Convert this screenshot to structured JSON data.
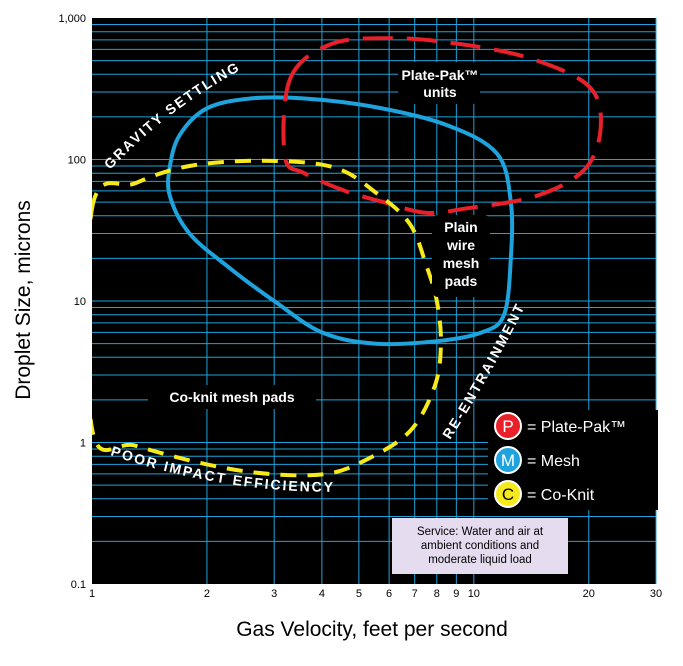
{
  "chart_data": {
    "type": "line",
    "x_scale": "log",
    "y_scale": "log",
    "xlim": [
      1,
      30
    ],
    "ylim": [
      0.1,
      1000
    ],
    "xlabel": "Gas Velocity, feet per second",
    "ylabel": "Droplet Size, microns",
    "x_ticks": [
      {
        "value": 1,
        "label": "1"
      },
      {
        "value": 2,
        "label": "2"
      },
      {
        "value": 3,
        "label": "3"
      },
      {
        "value": 4,
        "label": "4"
      },
      {
        "value": 5,
        "label": "5"
      },
      {
        "value": 6,
        "label": "6"
      },
      {
        "value": 7,
        "label": "7"
      },
      {
        "value": 8,
        "label": "8"
      },
      {
        "value": 9,
        "label": "9"
      },
      {
        "value": 10,
        "label": "10"
      },
      {
        "value": 20,
        "label": "20"
      },
      {
        "value": 30,
        "label": "30"
      }
    ],
    "y_ticks": [
      {
        "value": 0.1,
        "label": "0.1"
      },
      {
        "value": 1,
        "label": "1"
      },
      {
        "value": 10,
        "label": "10"
      },
      {
        "value": 100,
        "label": "100"
      },
      {
        "value": 1000,
        "label": "1,000"
      }
    ],
    "grid": true,
    "background": "#000000",
    "series": [
      {
        "name": "Plate-Pak™",
        "color": "#e8202a",
        "style": "dashed",
        "points": [
          [
            3.3,
            370
          ],
          [
            4.2,
            650
          ],
          [
            6,
            720
          ],
          [
            9,
            660
          ],
          [
            14,
            520
          ],
          [
            20,
            330
          ],
          [
            21.5,
            170
          ],
          [
            19.5,
            85
          ],
          [
            14.5,
            55
          ],
          [
            9.5,
            45
          ],
          [
            7.5,
            42
          ],
          [
            5.8,
            50
          ],
          [
            4.6,
            60
          ],
          [
            3.6,
            80
          ],
          [
            3.2,
            105
          ]
        ]
      },
      {
        "name": "Mesh",
        "color": "#1ea3dc",
        "style": "solid",
        "points": [
          [
            1.7,
            150
          ],
          [
            2,
            230
          ],
          [
            2.6,
            270
          ],
          [
            3.6,
            270
          ],
          [
            5.5,
            235
          ],
          [
            8.5,
            175
          ],
          [
            11.5,
            110
          ],
          [
            12.5,
            50
          ],
          [
            12.5,
            20
          ],
          [
            12,
            8
          ],
          [
            10.5,
            6
          ],
          [
            8,
            5.2
          ],
          [
            5.5,
            5
          ],
          [
            4,
            6
          ],
          [
            3,
            10
          ],
          [
            2.3,
            17
          ],
          [
            1.8,
            30
          ],
          [
            1.6,
            55
          ],
          [
            1.6,
            90
          ]
        ]
      },
      {
        "name": "Co-Knit",
        "color": "#f6ea1c",
        "style": "dashed",
        "points": [
          [
            1,
            45
          ],
          [
            1.3,
            68
          ],
          [
            1.8,
            90
          ],
          [
            2.8,
            98
          ],
          [
            4.3,
            88
          ],
          [
            5.6,
            57
          ],
          [
            6.8,
            35
          ],
          [
            7.5,
            18
          ],
          [
            8,
            10
          ],
          [
            8.2,
            5
          ],
          [
            7.9,
            2.5
          ],
          [
            6.8,
            1.2
          ],
          [
            5.2,
            0.75
          ],
          [
            4.1,
            0.6
          ],
          [
            2.9,
            0.6
          ],
          [
            2,
            0.7
          ],
          [
            1.3,
            0.95
          ],
          [
            1,
            1.25
          ]
        ]
      }
    ],
    "annotations": {
      "plate_pak_units": "Plate-Pak™\nunits",
      "plain_wire": "Plain\nwire\nmesh\npads",
      "co_knit": "Co-knit mesh pads",
      "gravity": "GRAVITY SETTLING",
      "re_entrainment": "RE-ENTRAINMENT",
      "poor_impact": "POOR IMPACT EFFICIENCY"
    },
    "legend": {
      "position": "bottom-right",
      "entries": [
        {
          "letter": "P",
          "label": "= Plate-Pak™",
          "color": "#e8202a"
        },
        {
          "letter": "M",
          "label": "= Mesh",
          "color": "#1ea3dc"
        },
        {
          "letter": "C",
          "label": "= Co-Knit",
          "color": "#f6ea1c"
        }
      ]
    },
    "service_note": "Service: Water and air at ambient conditions and moderate liquid load"
  }
}
